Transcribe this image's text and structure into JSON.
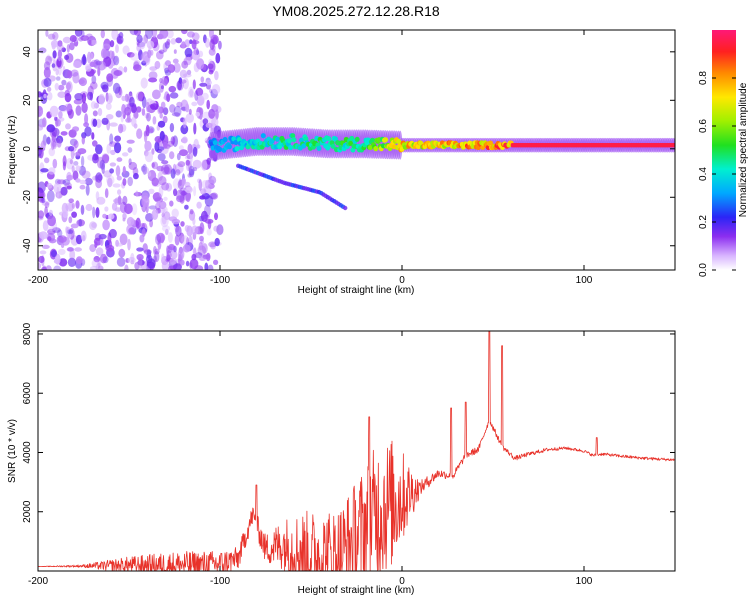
{
  "title": "YM08.2025.272.12.28.R18",
  "chart_data": [
    {
      "type": "heatmap",
      "title": "YM08.2025.272.12.28.R18",
      "xlabel": "Height of straight line (km)",
      "ylabel": "Frequency (Hz)",
      "xlim": [
        -200,
        150
      ],
      "ylim": [
        -50,
        49
      ],
      "xticks": [
        -200,
        -100,
        0,
        100
      ],
      "xtick_labels": [
        "-200",
        "-100",
        "0",
        "100"
      ],
      "yticks": [
        -40,
        -20,
        0,
        20,
        40
      ],
      "ytick_labels": [
        "-40",
        "-20",
        "0",
        "20",
        "40"
      ],
      "colorbar": {
        "label": "Normalized spectral amplitude",
        "range": [
          0,
          1
        ],
        "ticks": [
          0,
          0.2,
          0.4,
          0.6,
          0.8
        ],
        "tick_labels": [
          "0.0",
          "0.2",
          "0.4",
          "0.6",
          "0.8"
        ]
      },
      "features": [
        {
          "name": "noise field",
          "x_range": [
            -200,
            -100
          ],
          "f_range": [
            -50,
            49
          ],
          "amplitude": 0.15
        },
        {
          "name": "signal band",
          "points": [
            [
              -105,
              1
            ],
            [
              -80,
              3
            ],
            [
              -60,
              3
            ],
            [
              -40,
              2
            ],
            [
              -20,
              2
            ],
            [
              0,
              1.5
            ],
            [
              30,
              1.5
            ],
            [
              60,
              1.5
            ],
            [
              150,
              1.5
            ]
          ],
          "amplitude": [
            0.35,
            0.45,
            0.5,
            0.5,
            0.55,
            0.8,
            0.85,
            0.95,
            0.95
          ]
        },
        {
          "name": "lower branch",
          "points": [
            [
              -90,
              -7
            ],
            [
              -65,
              -14
            ],
            [
              -45,
              -18
            ],
            [
              -30,
              -25
            ]
          ],
          "amplitude": 0.2
        }
      ]
    },
    {
      "type": "line",
      "xlabel": "Height of straight line (km)",
      "ylabel": "SNR (10 * v/v)",
      "xlim": [
        -200,
        150
      ],
      "ylim": [
        0,
        8100
      ],
      "xticks": [
        -200,
        -100,
        0,
        100
      ],
      "xtick_labels": [
        "-200",
        "-100",
        "0",
        "100"
      ],
      "yticks": [
        2000,
        4000,
        6000,
        8000
      ],
      "ytick_labels": [
        "2000",
        "4000",
        "6000",
        "8000"
      ],
      "series": [
        {
          "name": "SNR",
          "color": "#e8322a",
          "x": [
            -200,
            -175,
            -150,
            -125,
            -100,
            -90,
            -82,
            -75,
            -65,
            -55,
            -45,
            -35,
            -25,
            -18,
            -12,
            -5,
            0,
            10,
            20,
            28,
            35,
            42,
            48,
            55,
            62,
            70,
            80,
            90,
            100,
            105,
            110,
            120,
            130,
            140,
            150
          ],
          "y": [
            150,
            170,
            190,
            210,
            240,
            420,
            1900,
            750,
            900,
            650,
            550,
            500,
            1100,
            1700,
            2100,
            2300,
            2500,
            2800,
            3300,
            3200,
            3900,
            4100,
            5100,
            4200,
            3800,
            3950,
            4100,
            4150,
            4050,
            3900,
            3950,
            3880,
            3820,
            3780,
            3750
          ],
          "peaks": [
            [
              -80,
              2900
            ],
            [
              -18,
              5200
            ],
            [
              27,
              5500
            ],
            [
              35,
              5700
            ],
            [
              48,
              8100
            ],
            [
              55,
              7600
            ],
            [
              107,
              4500
            ]
          ],
          "spread": [
            0,
            50,
            300,
            450,
            450,
            400,
            350,
            500,
            900,
            1400,
            1500,
            1700,
            2000,
            2200,
            2400,
            2200,
            1600,
            250,
            150,
            130,
            120,
            110,
            100,
            90,
            80,
            70,
            60,
            50,
            50,
            50,
            50,
            50,
            50,
            50,
            50
          ]
        }
      ]
    }
  ]
}
